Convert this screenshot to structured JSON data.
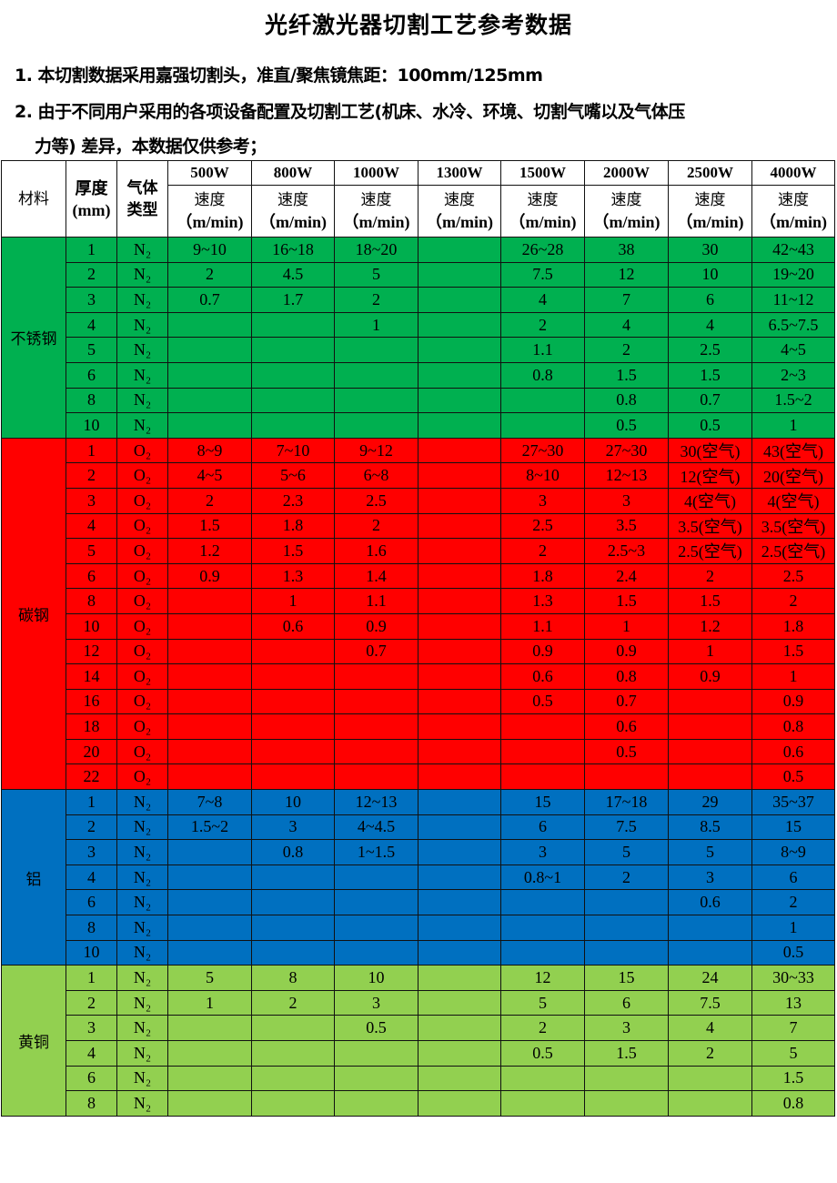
{
  "title": "光纤激光器切割工艺参考数据",
  "notes": [
    "1. 本切割数据采用嘉强切割头，准直/聚焦镜焦距：100mm/125mm",
    "2. 由于不同用户采用的各项设备配置及切割工艺(机床、水冷、环境、切割气嘴以及气体压",
    "力等) 差异，本数据仅供参考；"
  ],
  "table": {
    "headers": {
      "material": "材料",
      "thickness": "厚度",
      "thickness_unit": "(mm)",
      "gas": "气体",
      "gas2": "类型",
      "speed": "速度",
      "speed_unit": "（m/min)"
    },
    "powers": [
      "500W",
      "800W",
      "1000W",
      "1300W",
      "1500W",
      "2000W",
      "2500W",
      "4000W"
    ],
    "groups": [
      {
        "material": "不锈钢",
        "color": "#00b050",
        "key": "ss",
        "rows": [
          [
            "1",
            "N₂",
            "9~10",
            "16~18",
            "18~20",
            "",
            "26~28",
            "38",
            "30",
            "42~43"
          ],
          [
            "2",
            "N₂",
            "2",
            "4.5",
            "5",
            "",
            "7.5",
            "12",
            "10",
            "19~20"
          ],
          [
            "3",
            "N₂",
            "0.7",
            "1.7",
            "2",
            "",
            "4",
            "7",
            "6",
            "11~12"
          ],
          [
            "4",
            "N₂",
            "",
            "",
            "1",
            "",
            "2",
            "4",
            "4",
            "6.5~7.5"
          ],
          [
            "5",
            "N₂",
            "",
            "",
            "",
            "",
            "1.1",
            "2",
            "2.5",
            "4~5"
          ],
          [
            "6",
            "N₂",
            "",
            "",
            "",
            "",
            "0.8",
            "1.5",
            "1.5",
            "2~3"
          ],
          [
            "8",
            "N₂",
            "",
            "",
            "",
            "",
            "",
            "0.8",
            "0.7",
            "1.5~2"
          ],
          [
            "10",
            "N₂",
            "",
            "",
            "",
            "",
            "",
            "0.5",
            "0.5",
            "1"
          ]
        ]
      },
      {
        "material": "碳钢",
        "color": "#ff0000",
        "key": "cs",
        "rows": [
          [
            "1",
            "O₂",
            "8~9",
            "7~10",
            "9~12",
            "",
            "27~30",
            "27~30",
            "30(空气)",
            "43(空气)"
          ],
          [
            "2",
            "O₂",
            "4~5",
            "5~6",
            "6~8",
            "",
            "8~10",
            "12~13",
            "12(空气)",
            "20(空气)"
          ],
          [
            "3",
            "O₂",
            "2",
            "2.3",
            "2.5",
            "",
            "3",
            "3",
            "4(空气)",
            "4(空气)"
          ],
          [
            "4",
            "O₂",
            "1.5",
            "1.8",
            "2",
            "",
            "2.5",
            "3.5",
            "3.5(空气)",
            "3.5(空气)"
          ],
          [
            "5",
            "O₂",
            "1.2",
            "1.5",
            "1.6",
            "",
            "2",
            "2.5~3",
            "2.5(空气)",
            "2.5(空气)"
          ],
          [
            "6",
            "O₂",
            "0.9",
            "1.3",
            "1.4",
            "",
            "1.8",
            "2.4",
            "2",
            "2.5"
          ],
          [
            "8",
            "O₂",
            "",
            "1",
            "1.1",
            "",
            "1.3",
            "1.5",
            "1.5",
            "2"
          ],
          [
            "10",
            "O₂",
            "",
            "0.6",
            "0.9",
            "",
            "1.1",
            "1",
            "1.2",
            "1.8"
          ],
          [
            "12",
            "O₂",
            "",
            "",
            "0.7",
            "",
            "0.9",
            "0.9",
            "1",
            "1.5"
          ],
          [
            "14",
            "O₂",
            "",
            "",
            "",
            "",
            "0.6",
            "0.8",
            "0.9",
            "1"
          ],
          [
            "16",
            "O₂",
            "",
            "",
            "",
            "",
            "0.5",
            "0.7",
            "",
            "0.9"
          ],
          [
            "18",
            "O₂",
            "",
            "",
            "",
            "",
            "",
            "0.6",
            "",
            "0.8"
          ],
          [
            "20",
            "O₂",
            "",
            "",
            "",
            "",
            "",
            "0.5",
            "",
            "0.6"
          ],
          [
            "22",
            "O₂",
            "",
            "",
            "",
            "",
            "",
            "",
            "",
            "0.5"
          ]
        ]
      },
      {
        "material": "铝",
        "color": "#0070c0",
        "key": "al",
        "rows": [
          [
            "1",
            "N₂",
            "7~8",
            "10",
            "12~13",
            "",
            "15",
            "17~18",
            "29",
            "35~37"
          ],
          [
            "2",
            "N₂",
            "1.5~2",
            "3",
            "4~4.5",
            "",
            "6",
            "7.5",
            "8.5",
            "15"
          ],
          [
            "3",
            "N₂",
            "",
            "0.8",
            "1~1.5",
            "",
            "3",
            "5",
            "5",
            "8~9"
          ],
          [
            "4",
            "N₂",
            "",
            "",
            "",
            "",
            "0.8~1",
            "2",
            "3",
            "6"
          ],
          [
            "6",
            "N₂",
            "",
            "",
            "",
            "",
            "",
            "",
            "0.6",
            "2"
          ],
          [
            "8",
            "N₂",
            "",
            "",
            "",
            "",
            "",
            "",
            "",
            "1"
          ],
          [
            "10",
            "N₂",
            "",
            "",
            "",
            "",
            "",
            "",
            "",
            "0.5"
          ]
        ]
      },
      {
        "material": "黄铜",
        "color": "#92d050",
        "key": "br",
        "rows": [
          [
            "1",
            "N₂",
            "5",
            "8",
            "10",
            "",
            "12",
            "15",
            "24",
            "30~33"
          ],
          [
            "2",
            "N₂",
            "1",
            "2",
            "3",
            "",
            "5",
            "6",
            "7.5",
            "13"
          ],
          [
            "3",
            "N₂",
            "",
            "",
            "0.5",
            "",
            "2",
            "3",
            "4",
            "7"
          ],
          [
            "4",
            "N₂",
            "",
            "",
            "",
            "",
            "0.5",
            "1.5",
            "2",
            "5"
          ],
          [
            "6",
            "N₂",
            "",
            "",
            "",
            "",
            "",
            "",
            "",
            "1.5"
          ],
          [
            "8",
            "N₂",
            "",
            "",
            "",
            "",
            "",
            "",
            "",
            "0.8"
          ]
        ]
      }
    ]
  }
}
